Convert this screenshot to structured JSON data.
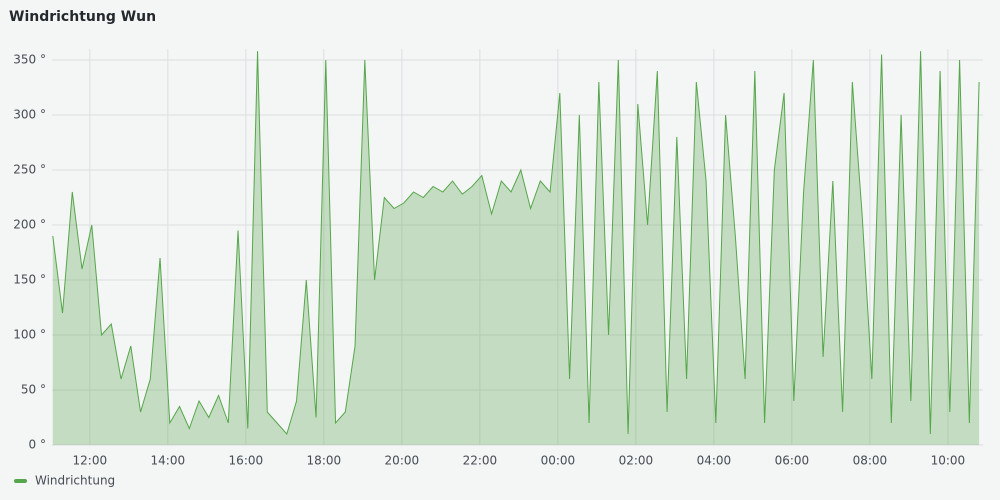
{
  "chart_data": {
    "type": "area",
    "title": "Windrichtung Wun",
    "x": [
      11.05,
      11.3,
      11.55,
      11.8,
      12.05,
      12.3,
      12.55,
      12.8,
      13.05,
      13.3,
      13.55,
      13.8,
      14.05,
      14.3,
      14.55,
      14.8,
      15.05,
      15.3,
      15.55,
      15.8,
      16.05,
      16.3,
      16.55,
      16.8,
      17.05,
      17.3,
      17.55,
      17.8,
      18.05,
      18.3,
      18.55,
      18.8,
      19.05,
      19.3,
      19.55,
      19.8,
      20.05,
      20.3,
      20.55,
      20.8,
      21.05,
      21.3,
      21.55,
      21.8,
      22.05,
      22.3,
      22.55,
      22.8,
      23.05,
      23.3,
      23.55,
      23.8,
      24.05,
      24.3,
      24.55,
      24.8,
      25.05,
      25.3,
      25.55,
      25.8,
      26.05,
      26.3,
      26.55,
      26.8,
      27.05,
      27.3,
      27.55,
      27.8,
      28.05,
      28.3,
      28.55,
      28.8,
      29.05,
      29.3,
      29.55,
      29.8,
      30.05,
      30.3,
      30.55,
      30.8,
      31.05,
      31.3,
      31.55,
      31.8,
      32.05,
      32.3,
      32.55,
      32.8,
      33.05,
      33.3,
      33.55,
      33.8,
      34.05,
      34.3,
      34.55,
      34.8
    ],
    "series": [
      {
        "name": "Windrichtung",
        "color": "#56a64b",
        "values": [
          190,
          120,
          230,
          160,
          200,
          100,
          110,
          60,
          90,
          30,
          60,
          170,
          20,
          35,
          15,
          40,
          25,
          45,
          20,
          195,
          15,
          358,
          30,
          20,
          10,
          40,
          150,
          25,
          350,
          20,
          30,
          90,
          350,
          150,
          225,
          215,
          220,
          230,
          225,
          235,
          230,
          240,
          228,
          235,
          245,
          210,
          240,
          230,
          250,
          215,
          240,
          230,
          320,
          60,
          300,
          20,
          330,
          100,
          350,
          10,
          310,
          200,
          340,
          30,
          280,
          60,
          330,
          240,
          20,
          300,
          190,
          60,
          340,
          20,
          250,
          320,
          40,
          230,
          350,
          80,
          240,
          30,
          330,
          210,
          60,
          355,
          20,
          300,
          40,
          358,
          10,
          340,
          30,
          350,
          20,
          330
        ]
      }
    ],
    "xlim": [
      11.03,
      34.9
    ],
    "xticks": [
      {
        "value": 12,
        "label": "12:00"
      },
      {
        "value": 14,
        "label": "14:00"
      },
      {
        "value": 16,
        "label": "16:00"
      },
      {
        "value": 18,
        "label": "18:00"
      },
      {
        "value": 20,
        "label": "20:00"
      },
      {
        "value": 22,
        "label": "22:00"
      },
      {
        "value": 24,
        "label": "00:00"
      },
      {
        "value": 26,
        "label": "02:00"
      },
      {
        "value": 28,
        "label": "04:00"
      },
      {
        "value": 30,
        "label": "06:00"
      },
      {
        "value": 32,
        "label": "08:00"
      },
      {
        "value": 34,
        "label": "10:00"
      }
    ],
    "ylim": [
      0,
      360
    ],
    "yticks": [
      {
        "value": 0,
        "label": "0 °"
      },
      {
        "value": 50,
        "label": "50 °"
      },
      {
        "value": 100,
        "label": "100 °"
      },
      {
        "value": 150,
        "label": "150 °"
      },
      {
        "value": 200,
        "label": "200 °"
      },
      {
        "value": 250,
        "label": "250 °"
      },
      {
        "value": 300,
        "label": "300 °"
      },
      {
        "value": 350,
        "label": "350 °"
      }
    ],
    "grid": true,
    "legend": "bottom-left"
  }
}
